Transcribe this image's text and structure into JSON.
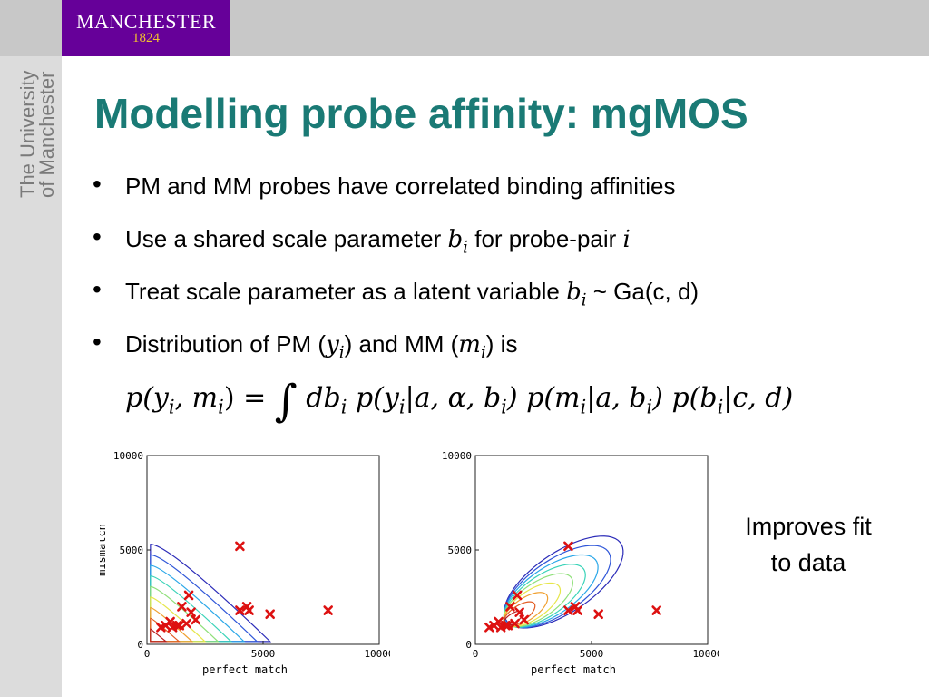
{
  "header": {
    "logo_name": "MANCHESTER",
    "logo_year": "1824"
  },
  "sidebar": {
    "university_line1": "The University",
    "university_line2": "of Manchester"
  },
  "slide": {
    "title": "Modelling probe affinity: mgMOS",
    "bullets": {
      "b1": "PM and MM probes have correlated binding affinities",
      "b2_text": "Use a shared scale parameter ",
      "b2_var": "b",
      "b2_sub": "i",
      "b2_text2": " for probe-pair ",
      "b2_var2": "i",
      "b3_text": "Treat scale parameter as a latent variable ",
      "b3_var": "b",
      "b3_sub": "i",
      "b3_dist": " ~ Ga(c, d)",
      "b4_text1": "Distribution of PM (",
      "b4_y": "y",
      "b4_ysub": "i",
      "b4_text2": ") and MM (",
      "b4_m": "m",
      "b4_msub": "i",
      "b4_text3": ") is"
    },
    "equation_lhs": "p(y",
    "equation_lhs_sub": "i",
    "equation_lhs2": ", m",
    "equation_lhs_sub2": "i",
    "equation_lhs3": ") = ",
    "equation_integral": "∫",
    "equation_rhs": " db",
    "equation_rhs_sub": "i",
    "equation_rhs2": " p(y",
    "equation_rhs_sub2": "i",
    "equation_rhs3": "|a, α, b",
    "equation_rhs_sub3": "i",
    "equation_rhs4": ") p(m",
    "equation_rhs_sub4": "i",
    "equation_rhs5": "|a, b",
    "equation_rhs_sub5": "i",
    "equation_rhs6": ") p(b",
    "equation_rhs_sub6": "i",
    "equation_rhs7": "|c, d)",
    "note": "Improves fit to data"
  },
  "colors": {
    "title": "#1a7a75",
    "logo_bg": "#660099",
    "logo_year": "#f2c22e",
    "marker": "#dd1111"
  },
  "chart_data": [
    {
      "type": "scatter",
      "xlabel": "perfect match",
      "ylabel": "mismatch",
      "xlim": [
        0,
        10000
      ],
      "ylim": [
        0,
        10000
      ],
      "xticks": [
        "0",
        "5000",
        "10000"
      ],
      "yticks": [
        "0",
        "5000",
        "10000"
      ],
      "points": [
        [
          4000,
          5200
        ],
        [
          1800,
          2600
        ],
        [
          1500,
          2000
        ],
        [
          1900,
          1700
        ],
        [
          4000,
          1800
        ],
        [
          4300,
          2000
        ],
        [
          4400,
          1800
        ],
        [
          5300,
          1600
        ],
        [
          7800,
          1800
        ],
        [
          2100,
          1300
        ],
        [
          1700,
          1100
        ],
        [
          1300,
          1000
        ],
        [
          1100,
          900
        ],
        [
          800,
          1000
        ],
        [
          600,
          900
        ],
        [
          1000,
          1200
        ],
        [
          1400,
          1000
        ]
      ]
    },
    {
      "type": "scatter",
      "xlabel": "perfect match",
      "ylabel": "",
      "xlim": [
        0,
        10000
      ],
      "ylim": [
        0,
        10000
      ],
      "xticks": [
        "0",
        "5000",
        "10000"
      ],
      "yticks": [
        "0",
        "5000",
        "10000"
      ],
      "points": [
        [
          4000,
          5200
        ],
        [
          1800,
          2600
        ],
        [
          1500,
          2000
        ],
        [
          1900,
          1700
        ],
        [
          4000,
          1800
        ],
        [
          4300,
          2000
        ],
        [
          4400,
          1800
        ],
        [
          5300,
          1600
        ],
        [
          7800,
          1800
        ],
        [
          2100,
          1300
        ],
        [
          1700,
          1100
        ],
        [
          1300,
          1000
        ],
        [
          1100,
          900
        ],
        [
          800,
          1000
        ],
        [
          600,
          900
        ],
        [
          1000,
          1200
        ],
        [
          1400,
          1000
        ]
      ]
    }
  ]
}
